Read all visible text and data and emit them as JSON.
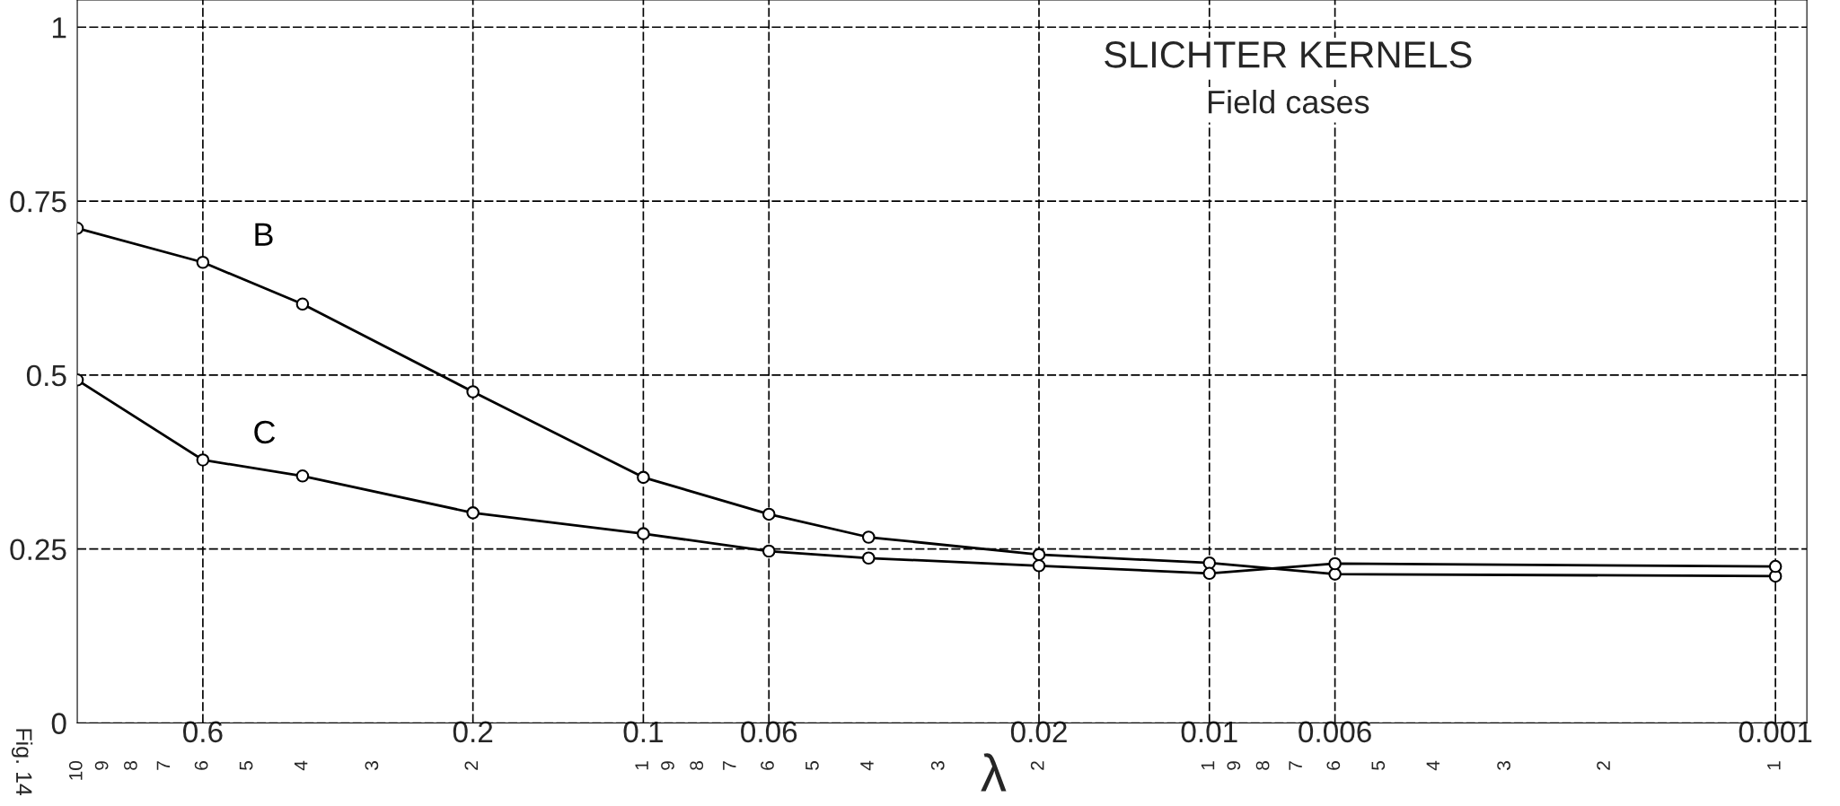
{
  "chart_data": {
    "type": "line",
    "title": "SLICHTER KERNELS",
    "subtitle": "Field cases",
    "xlabel": "λ",
    "annotations": [
      "Fig. 14",
      "10",
      "9",
      "8",
      "7",
      "6",
      "5",
      "4",
      "3",
      "2",
      "1",
      "9",
      "8",
      "7",
      "6",
      "5",
      "4",
      "3",
      "2",
      "1",
      "9",
      "8",
      "7",
      "6",
      "5",
      "4",
      "3",
      "2",
      "1"
    ],
    "x": [
      1,
      0.6,
      0.4,
      0.2,
      0.1,
      0.06,
      0.04,
      0.02,
      0.01,
      0.006,
      0.001
    ],
    "series": [
      {
        "name": "B",
        "color": "#000000",
        "values": [
          0.711,
          0.662,
          0.602,
          0.476,
          0.353,
          0.3,
          0.267,
          0.242,
          0.23,
          0.214,
          0.211
        ]
      },
      {
        "name": "C",
        "color": "#000000",
        "values": [
          0.493,
          0.378,
          0.355,
          0.302,
          0.272,
          0.247,
          0.237,
          0.226,
          0.215,
          0.229,
          0.225
        ]
      }
    ],
    "log": "x",
    "xlim": [
      1,
      0.00088
    ],
    "ylim": [
      0,
      1.039
    ],
    "xticks": [
      0.6,
      0.2,
      0.1,
      0.06,
      0.02,
      0.01,
      0.006,
      0.001
    ],
    "yticks": [
      0,
      0.25,
      0.5,
      0.75,
      1
    ],
    "grid": true,
    "marker": "circle",
    "line_style": "solid"
  }
}
